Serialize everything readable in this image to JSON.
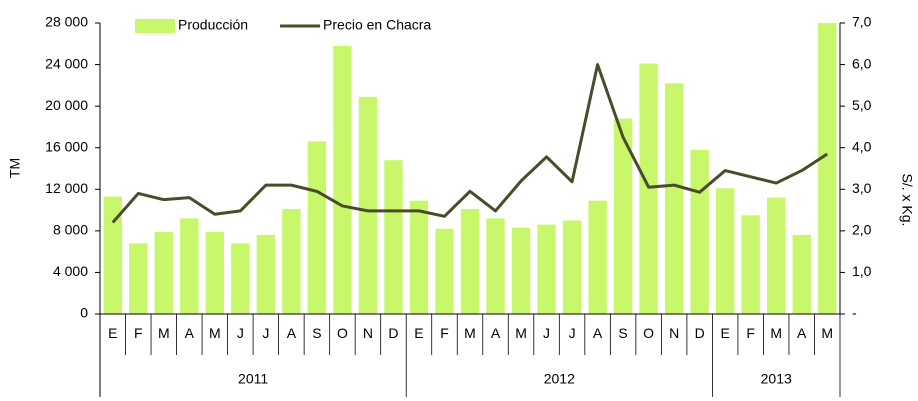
{
  "chart_data": {
    "type": "bar_line",
    "groups": [
      {
        "label": "2011",
        "categories": [
          "E",
          "F",
          "M",
          "A",
          "M",
          "J",
          "J",
          "A",
          "S",
          "O",
          "N",
          "D"
        ]
      },
      {
        "label": "2012",
        "categories": [
          "E",
          "F",
          "M",
          "A",
          "M",
          "J",
          "J",
          "A",
          "S",
          "O",
          "N",
          "D"
        ]
      },
      {
        "label": "2013",
        "categories": [
          "E",
          "F",
          "M",
          "A",
          "M"
        ]
      }
    ],
    "series": [
      {
        "name": "Producción",
        "type": "bar",
        "color": "#c8f76b",
        "axis": "y",
        "values": [
          11300,
          6800,
          7900,
          9200,
          7900,
          6800,
          7600,
          10100,
          16600,
          25800,
          20900,
          14800,
          10900,
          8200,
          10100,
          9200,
          8300,
          8600,
          9000,
          10900,
          18800,
          24100,
          22200,
          15800,
          12100,
          9500,
          11200,
          7600,
          28000
        ]
      },
      {
        "name": "Precio en Chacra",
        "type": "line",
        "color": "#4b4b2b",
        "axis": "y2",
        "values": [
          2.2,
          2.9,
          2.75,
          2.8,
          2.4,
          2.48,
          3.1,
          3.1,
          2.95,
          2.6,
          2.48,
          2.48,
          2.48,
          2.35,
          2.95,
          2.48,
          3.2,
          3.78,
          3.18,
          6.0,
          4.25,
          3.05,
          3.1,
          2.93,
          3.45,
          3.3,
          3.15,
          3.45,
          3.85
        ]
      }
    ],
    "y_label": "TM",
    "y2_label": "S/. x Kg.",
    "ylim": [
      0,
      28000
    ],
    "yticks": [
      0,
      {
        "value": 4000,
        "label": "4 000"
      },
      {
        "value": 8000,
        "label": "8 000"
      },
      {
        "value": 12000,
        "label": "12 000"
      },
      {
        "value": 16000,
        "label": "16 000"
      },
      {
        "value": 20000,
        "label": "20 000"
      },
      {
        "value": 24000,
        "label": "24 000"
      },
      {
        "value": 28000,
        "label": "28 000"
      }
    ],
    "y2lim": [
      0,
      7
    ],
    "y2ticks": [
      {
        "value": 0,
        "label": "-"
      },
      {
        "value": 1,
        "label": "1,0"
      },
      {
        "value": 2,
        "label": "2,0"
      },
      {
        "value": 3,
        "label": "3,0"
      },
      {
        "value": 4,
        "label": "4,0"
      },
      {
        "value": 5,
        "label": "5,0"
      },
      {
        "value": 6,
        "label": "6,0"
      },
      {
        "value": 7,
        "label": "7,0"
      }
    ],
    "legend": "top"
  }
}
